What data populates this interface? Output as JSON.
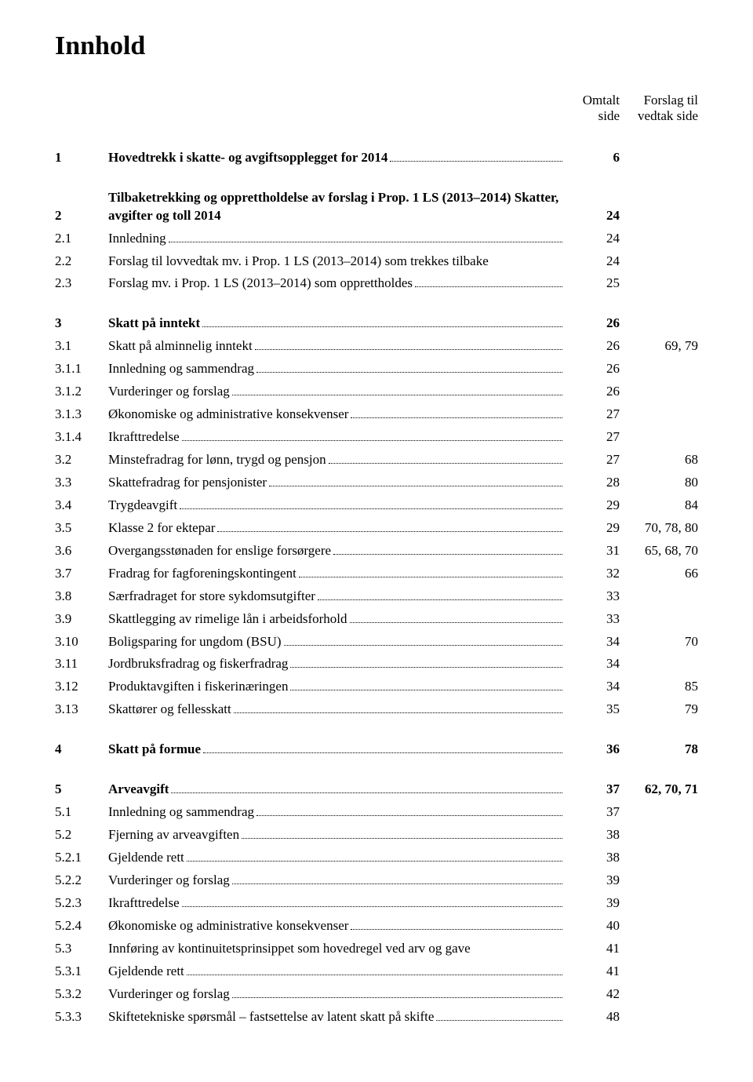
{
  "title": "Innhold",
  "columns": {
    "omtalt_line1": "Omtalt",
    "omtalt_line2": "side",
    "forslag_line1": "Forslag til",
    "forslag_line2": "vedtak side"
  },
  "font": {
    "body_size_pt": 13,
    "title_size_pt": 26,
    "family": "Times New Roman"
  },
  "colors": {
    "text": "#000000",
    "background": "#ffffff",
    "leader": "#000000"
  },
  "entries": [
    {
      "num": "1",
      "label": "Hovedtrekk i skatte- og avgiftsopplegget for 2014",
      "omtalt": "6",
      "forslag": "",
      "bold": true,
      "group_start": true
    },
    {
      "num": "2",
      "label": "Tilbaketrekking og opprettholdelse av forslag i Prop. 1 LS (2013–2014) Skatter, avgifter og toll 2014",
      "omtalt": "24",
      "forslag": "",
      "bold": true,
      "no_dots": true,
      "group_start": true
    },
    {
      "num": "2.1",
      "label": "Innledning",
      "omtalt": "24",
      "forslag": ""
    },
    {
      "num": "2.2",
      "label": "Forslag til lovvedtak mv. i Prop. 1 LS (2013–2014) som trekkes tilbake",
      "omtalt": "24",
      "forslag": "",
      "no_dots": true
    },
    {
      "num": "2.3",
      "label": "Forslag mv. i Prop. 1 LS (2013–2014) som opprettholdes",
      "omtalt": "25",
      "forslag": ""
    },
    {
      "num": "3",
      "label": "Skatt på inntekt",
      "omtalt": "26",
      "forslag": "",
      "bold": true,
      "group_start": true
    },
    {
      "num": "3.1",
      "label": "Skatt på alminnelig inntekt",
      "omtalt": "26",
      "forslag": "69, 79"
    },
    {
      "num": "3.1.1",
      "label": "Innledning og sammendrag",
      "omtalt": "26",
      "forslag": ""
    },
    {
      "num": "3.1.2",
      "label": "Vurderinger og forslag",
      "omtalt": "26",
      "forslag": ""
    },
    {
      "num": "3.1.3",
      "label": "Økonomiske og administrative konsekvenser",
      "omtalt": "27",
      "forslag": ""
    },
    {
      "num": "3.1.4",
      "label": "Ikrafttredelse",
      "omtalt": "27",
      "forslag": ""
    },
    {
      "num": "3.2",
      "label": "Minstefradrag for lønn, trygd og pensjon",
      "omtalt": "27",
      "forslag": "68"
    },
    {
      "num": "3.3",
      "label": "Skattefradrag for pensjonister",
      "omtalt": "28",
      "forslag": "80"
    },
    {
      "num": "3.4",
      "label": "Trygdeavgift",
      "omtalt": "29",
      "forslag": "84"
    },
    {
      "num": "3.5",
      "label": "Klasse 2 for ektepar",
      "omtalt": "29",
      "forslag": "70, 78, 80"
    },
    {
      "num": "3.6",
      "label": "Overgangsstønaden for enslige forsørgere",
      "omtalt": "31",
      "forslag": "65, 68, 70"
    },
    {
      "num": "3.7",
      "label": "Fradrag for fagforeningskontingent",
      "omtalt": "32",
      "forslag": "66"
    },
    {
      "num": "3.8",
      "label": "Særfradraget for store sykdomsutgifter",
      "omtalt": "33",
      "forslag": ""
    },
    {
      "num": "3.9",
      "label": "Skattlegging av rimelige lån i arbeidsforhold",
      "omtalt": "33",
      "forslag": ""
    },
    {
      "num": "3.10",
      "label": "Boligsparing for ungdom (BSU)",
      "omtalt": "34",
      "forslag": "70"
    },
    {
      "num": "3.11",
      "label": "Jordbruksfradrag og fiskerfradrag",
      "omtalt": "34",
      "forslag": ""
    },
    {
      "num": "3.12",
      "label": "Produktavgiften i fiskerinæringen",
      "omtalt": "34",
      "forslag": "85"
    },
    {
      "num": "3.13",
      "label": "Skattører og fellesskatt",
      "omtalt": "35",
      "forslag": "79"
    },
    {
      "num": "4",
      "label": "Skatt på formue",
      "omtalt": "36",
      "forslag": "78",
      "bold": true,
      "group_start": true
    },
    {
      "num": "5",
      "label": "Arveavgift",
      "omtalt": "37",
      "forslag": "62, 70, 71",
      "bold": true,
      "group_start": true
    },
    {
      "num": "5.1",
      "label": "Innledning og sammendrag",
      "omtalt": "37",
      "forslag": ""
    },
    {
      "num": "5.2",
      "label": "Fjerning av arveavgiften",
      "omtalt": "38",
      "forslag": ""
    },
    {
      "num": "5.2.1",
      "label": "Gjeldende rett",
      "omtalt": "38",
      "forslag": ""
    },
    {
      "num": "5.2.2",
      "label": "Vurderinger og forslag",
      "omtalt": "39",
      "forslag": ""
    },
    {
      "num": "5.2.3",
      "label": "Ikrafttredelse",
      "omtalt": "39",
      "forslag": ""
    },
    {
      "num": "5.2.4",
      "label": "Økonomiske og administrative konsekvenser",
      "omtalt": "40",
      "forslag": ""
    },
    {
      "num": "5.3",
      "label": "Innføring av kontinuitetsprinsippet som hovedregel ved arv og gave",
      "omtalt": "41",
      "forslag": "",
      "no_dots": true
    },
    {
      "num": "5.3.1",
      "label": "Gjeldende rett",
      "omtalt": "41",
      "forslag": ""
    },
    {
      "num": "5.3.2",
      "label": "Vurderinger og forslag",
      "omtalt": "42",
      "forslag": ""
    },
    {
      "num": "5.3.3",
      "label": "Skiftetekniske spørsmål – fastsettelse av latent skatt på skifte",
      "omtalt": "48",
      "forslag": ""
    }
  ]
}
